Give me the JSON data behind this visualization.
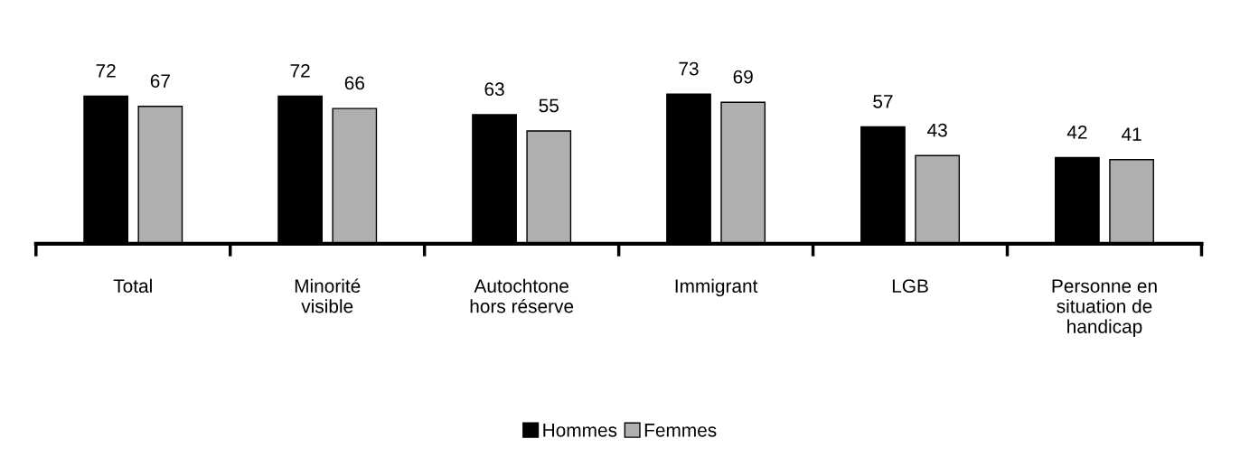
{
  "chart_data": {
    "type": "bar",
    "categories": [
      "Total",
      "Minorité\nvisible",
      "Autochtone\nhors réserve",
      "Immigrant",
      "LGB",
      "Personne en\nsituation de\nhandicap"
    ],
    "series": [
      {
        "name": "Hommes",
        "color": "#000000",
        "values": [
          72,
          72,
          63,
          73,
          57,
          42
        ]
      },
      {
        "name": "Femmes",
        "color": "#b0aeae",
        "values": [
          67,
          66,
          55,
          69,
          43,
          41
        ]
      }
    ],
    "data_labels": true,
    "grid": false,
    "legend": "bottom",
    "tick_labels": "x"
  }
}
